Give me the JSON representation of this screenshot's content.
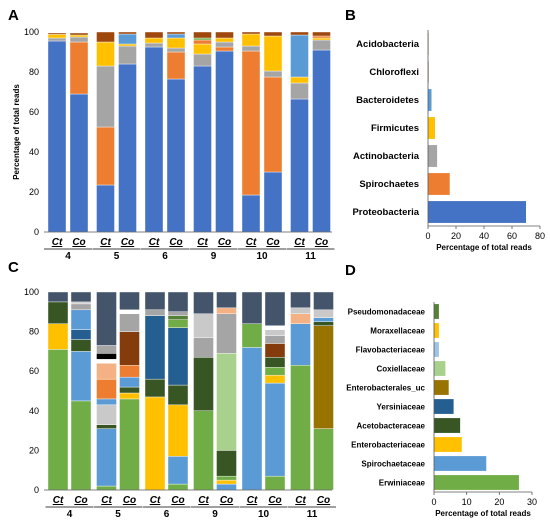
{
  "chart_data": [
    {
      "panel": "A",
      "type": "bar",
      "stacked": true,
      "ylabel": "Percentage of total reads",
      "ylim": [
        0,
        100
      ],
      "yticks": [
        0,
        20,
        40,
        60,
        80,
        100
      ],
      "bar_labels": [
        "Ct",
        "Co"
      ],
      "groups": [
        "4",
        "5",
        "6",
        "9",
        "10",
        "11"
      ],
      "palette": {
        "blue": "#4472c4",
        "orange": "#ed7d31",
        "gray": "#a5a5a5",
        "yellow": "#ffc000",
        "lightblue": "#5b9bd5",
        "green": "#70ad47",
        "brown": "#9e480e"
      },
      "stacks": [
        {
          "label": "Ct",
          "group": "4",
          "segments": [
            {
              "c": "blue",
              "v": 95.5
            },
            {
              "c": "gray",
              "v": 1.5
            },
            {
              "c": "yellow",
              "v": 1.8
            },
            {
              "c": "brown",
              "v": 0.7
            }
          ]
        },
        {
          "label": "Co",
          "group": "4",
          "segments": [
            {
              "c": "blue",
              "v": 69
            },
            {
              "c": "orange",
              "v": 26
            },
            {
              "c": "gray",
              "v": 2.5
            },
            {
              "c": "yellow",
              "v": 1
            },
            {
              "c": "brown",
              "v": 1
            }
          ]
        },
        {
          "label": "Ct",
          "group": "5",
          "segments": [
            {
              "c": "blue",
              "v": 23.5
            },
            {
              "c": "orange",
              "v": 29
            },
            {
              "c": "gray",
              "v": 30.5
            },
            {
              "c": "yellow",
              "v": 12
            },
            {
              "c": "brown",
              "v": 5
            }
          ]
        },
        {
          "label": "Co",
          "group": "5",
          "segments": [
            {
              "c": "blue",
              "v": 84
            },
            {
              "c": "gray",
              "v": 9
            },
            {
              "c": "yellow",
              "v": 1
            },
            {
              "c": "lightblue",
              "v": 5
            },
            {
              "c": "brown",
              "v": 1
            }
          ]
        },
        {
          "label": "Ct",
          "group": "6",
          "segments": [
            {
              "c": "blue",
              "v": 92.5
            },
            {
              "c": "gray",
              "v": 2
            },
            {
              "c": "yellow",
              "v": 2.5
            },
            {
              "c": "brown",
              "v": 3
            }
          ]
        },
        {
          "label": "Co",
          "group": "6",
          "segments": [
            {
              "c": "blue",
              "v": 76.5
            },
            {
              "c": "orange",
              "v": 13.5
            },
            {
              "c": "gray",
              "v": 2
            },
            {
              "c": "yellow",
              "v": 5
            },
            {
              "c": "lightblue",
              "v": 2
            },
            {
              "c": "brown",
              "v": 1
            }
          ]
        },
        {
          "label": "Ct",
          "group": "9",
          "segments": [
            {
              "c": "blue",
              "v": 83
            },
            {
              "c": "gray",
              "v": 6
            },
            {
              "c": "yellow",
              "v": 5
            },
            {
              "c": "orange",
              "v": 2
            },
            {
              "c": "green",
              "v": 1
            },
            {
              "c": "brown",
              "v": 3
            }
          ]
        },
        {
          "label": "Co",
          "group": "9",
          "segments": [
            {
              "c": "blue",
              "v": 90.5
            },
            {
              "c": "orange",
              "v": 2
            },
            {
              "c": "gray",
              "v": 2.5
            },
            {
              "c": "yellow",
              "v": 2
            },
            {
              "c": "brown",
              "v": 3
            }
          ]
        },
        {
          "label": "Ct",
          "group": "10",
          "segments": [
            {
              "c": "blue",
              "v": 18.5
            },
            {
              "c": "orange",
              "v": 72
            },
            {
              "c": "gray",
              "v": 2.5
            },
            {
              "c": "yellow",
              "v": 6
            },
            {
              "c": "brown",
              "v": 1
            }
          ]
        },
        {
          "label": "Co",
          "group": "10",
          "segments": [
            {
              "c": "blue",
              "v": 30
            },
            {
              "c": "orange",
              "v": 47.5
            },
            {
              "c": "gray",
              "v": 3
            },
            {
              "c": "yellow",
              "v": 17.5
            },
            {
              "c": "brown",
              "v": 2
            }
          ]
        },
        {
          "label": "Ct",
          "group": "11",
          "segments": [
            {
              "c": "blue",
              "v": 66.5
            },
            {
              "c": "gray",
              "v": 8
            },
            {
              "c": "yellow",
              "v": 3
            },
            {
              "c": "lightblue",
              "v": 21
            },
            {
              "c": "brown",
              "v": 1.5
            }
          ]
        },
        {
          "label": "Co",
          "group": "11",
          "segments": [
            {
              "c": "blue",
              "v": 91
            },
            {
              "c": "gray",
              "v": 5
            },
            {
              "c": "yellow",
              "v": 1
            },
            {
              "c": "orange",
              "v": 1
            },
            {
              "c": "brown",
              "v": 2
            }
          ]
        }
      ]
    },
    {
      "panel": "B",
      "type": "bar",
      "orientation": "horizontal",
      "xlabel": "Percentage of total reads",
      "xlim": [
        0,
        80
      ],
      "xticks": [
        0,
        20,
        40,
        60,
        80
      ],
      "categories": [
        "Acidobacteria",
        "Chloroflexi",
        "Bacteroidetes",
        "Firmicutes",
        "Actinobacteria",
        "Spirochaetes",
        "Proteobacteria"
      ],
      "values": [
        0.1,
        0.1,
        2.5,
        5,
        6.5,
        15.5,
        70
      ],
      "colors": [
        "#70ad47",
        "#9e480e",
        "#5b9bd5",
        "#ffc000",
        "#a5a5a5",
        "#ed7d31",
        "#4472c4"
      ]
    },
    {
      "panel": "C",
      "type": "bar",
      "stacked": true,
      "ylim": [
        0,
        100
      ],
      "yticks": [
        0,
        20,
        40,
        60,
        80,
        100
      ],
      "bar_labels": [
        "Ct",
        "Co"
      ],
      "groups": [
        "4",
        "5",
        "6",
        "9",
        "10",
        "11"
      ],
      "palette": {
        "green": "#70ad47",
        "lightblue": "#5b9bd5",
        "yellow": "#ffc000",
        "darkgreen": "#375623",
        "navy": "#255e91",
        "olive": "#997300",
        "orange": "#ed7d31",
        "brown": "#843c0c",
        "gray": "#a5a5a5",
        "lightgray": "#c9c9c9",
        "peach": "#f4b183",
        "black": "#000000",
        "slate": "#44546a",
        "lightgreen": "#a9d18e",
        "medgreen": "#548235",
        "white": "#ffffff"
      },
      "stacks": [
        {
          "label": "Ct",
          "group": "4",
          "segments": [
            {
              "c": "green",
              "v": 71
            },
            {
              "c": "yellow",
              "v": 13
            },
            {
              "c": "darkgreen",
              "v": 11
            },
            {
              "c": "slate",
              "v": 5
            }
          ]
        },
        {
          "label": "Co",
          "group": "4",
          "segments": [
            {
              "c": "green",
              "v": 45
            },
            {
              "c": "lightblue",
              "v": 25
            },
            {
              "c": "darkgreen",
              "v": 6
            },
            {
              "c": "navy",
              "v": 5
            },
            {
              "c": "lightblue",
              "v": 10
            },
            {
              "c": "gray",
              "v": 3
            },
            {
              "c": "lightgray",
              "v": 1
            },
            {
              "c": "slate",
              "v": 5
            }
          ]
        },
        {
          "label": "Ct",
          "group": "5",
          "segments": [
            {
              "c": "green",
              "v": 2
            },
            {
              "c": "lightblue",
              "v": 29
            },
            {
              "c": "darkgreen",
              "v": 2
            },
            {
              "c": "lightgray",
              "v": 10
            },
            {
              "c": "lightblue",
              "v": 3
            },
            {
              "c": "orange",
              "v": 10
            },
            {
              "c": "peach",
              "v": 8
            },
            {
              "c": "white",
              "v": 2
            },
            {
              "c": "black",
              "v": 3
            },
            {
              "c": "gray",
              "v": 4
            },
            {
              "c": "slate",
              "v": 27
            }
          ]
        },
        {
          "label": "Co",
          "group": "5",
          "segments": [
            {
              "c": "green",
              "v": 46
            },
            {
              "c": "yellow",
              "v": 3
            },
            {
              "c": "darkgreen",
              "v": 3
            },
            {
              "c": "lightblue",
              "v": 5
            },
            {
              "c": "orange",
              "v": 6
            },
            {
              "c": "brown",
              "v": 17
            },
            {
              "c": "gray",
              "v": 9
            },
            {
              "c": "white",
              "v": 2
            },
            {
              "c": "slate",
              "v": 9
            }
          ]
        },
        {
          "label": "Ct",
          "group": "6",
          "segments": [
            {
              "c": "yellow",
              "v": 47
            },
            {
              "c": "darkgreen",
              "v": 9
            },
            {
              "c": "navy",
              "v": 32
            },
            {
              "c": "gray",
              "v": 3
            },
            {
              "c": "slate",
              "v": 9
            }
          ]
        },
        {
          "label": "Co",
          "group": "6",
          "segments": [
            {
              "c": "green",
              "v": 3
            },
            {
              "c": "lightblue",
              "v": 14
            },
            {
              "c": "yellow",
              "v": 26
            },
            {
              "c": "darkgreen",
              "v": 10
            },
            {
              "c": "navy",
              "v": 29
            },
            {
              "c": "green",
              "v": 4
            },
            {
              "c": "medgreen",
              "v": 2
            },
            {
              "c": "gray",
              "v": 2
            },
            {
              "c": "slate",
              "v": 10
            }
          ]
        },
        {
          "label": "Ct",
          "group": "9",
          "segments": [
            {
              "c": "green",
              "v": 40
            },
            {
              "c": "darkgreen",
              "v": 27
            },
            {
              "c": "gray",
              "v": 10
            },
            {
              "c": "lightgray",
              "v": 12
            },
            {
              "c": "slate",
              "v": 11
            }
          ]
        },
        {
          "label": "Co",
          "group": "9",
          "segments": [
            {
              "c": "lightblue",
              "v": 3
            },
            {
              "c": "yellow",
              "v": 2
            },
            {
              "c": "green",
              "v": 2
            },
            {
              "c": "darkgreen",
              "v": 13
            },
            {
              "c": "lightgreen",
              "v": 49
            },
            {
              "c": "gray",
              "v": 20
            },
            {
              "c": "peach",
              "v": 3
            },
            {
              "c": "slate",
              "v": 8
            }
          ]
        },
        {
          "label": "Ct",
          "group": "10",
          "segments": [
            {
              "c": "lightblue",
              "v": 72
            },
            {
              "c": "green",
              "v": 12
            },
            {
              "c": "slate",
              "v": 16
            }
          ]
        },
        {
          "label": "Co",
          "group": "10",
          "segments": [
            {
              "c": "green",
              "v": 7
            },
            {
              "c": "lightblue",
              "v": 47
            },
            {
              "c": "yellow",
              "v": 4
            },
            {
              "c": "green",
              "v": 4
            },
            {
              "c": "darkgreen",
              "v": 5
            },
            {
              "c": "brown",
              "v": 7
            },
            {
              "c": "gray",
              "v": 4
            },
            {
              "c": "lightgray",
              "v": 3
            },
            {
              "c": "white",
              "v": 2
            },
            {
              "c": "slate",
              "v": 17
            }
          ]
        },
        {
          "label": "Ct",
          "group": "11",
          "segments": [
            {
              "c": "green",
              "v": 63
            },
            {
              "c": "lightblue",
              "v": 21
            },
            {
              "c": "peach",
              "v": 5
            },
            {
              "c": "lightgray",
              "v": 3
            },
            {
              "c": "slate",
              "v": 8
            }
          ]
        },
        {
          "label": "Co",
          "group": "11",
          "segments": [
            {
              "c": "green",
              "v": 31
            },
            {
              "c": "olive",
              "v": 52
            },
            {
              "c": "darkgreen",
              "v": 2
            },
            {
              "c": "lightblue",
              "v": 2
            },
            {
              "c": "lightgray",
              "v": 4
            },
            {
              "c": "slate",
              "v": 9
            }
          ]
        }
      ]
    },
    {
      "panel": "D",
      "type": "bar",
      "orientation": "horizontal",
      "xlabel": "Percentage of total reads",
      "xlim": [
        0,
        30
      ],
      "xticks": [
        0,
        10,
        20,
        30
      ],
      "categories": [
        "Pseudomonadaceae",
        "Moraxellaceae",
        "Flavobacteriaceae",
        "Coxiellaceae",
        "Enterobacterales_uc",
        "Yersiniaceae",
        "Acetobacteraceae",
        "Enterobacteriaceae",
        "Spirochaetaceae",
        "Erwiniaceae"
      ],
      "values": [
        1.5,
        1.5,
        1.5,
        3.5,
        4.5,
        6,
        8,
        8.5,
        16,
        26
      ],
      "colors": [
        "#548235",
        "#ffc000",
        "#9dc3e6",
        "#a9d18e",
        "#997300",
        "#255e91",
        "#375623",
        "#ffc000",
        "#5b9bd5",
        "#70ad47"
      ]
    }
  ]
}
